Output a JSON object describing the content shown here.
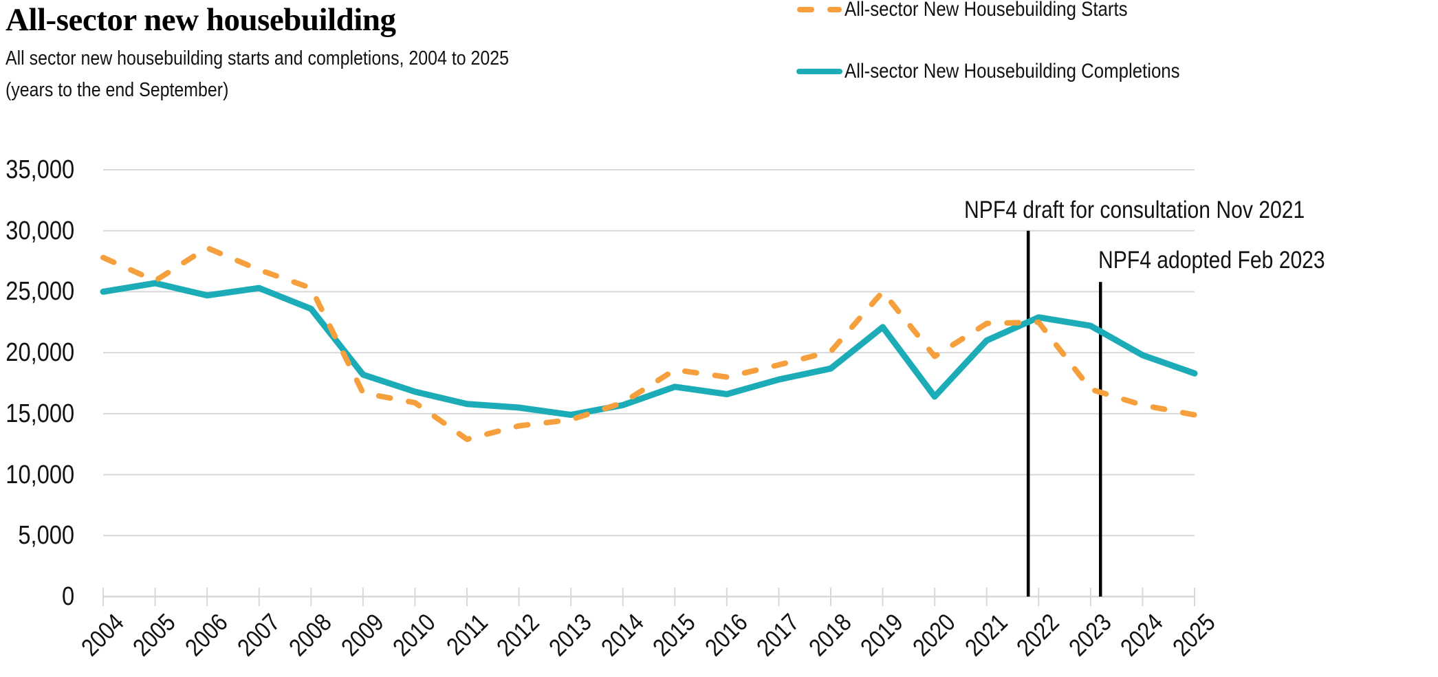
{
  "header": {
    "title": "All-sector new housebuilding",
    "subtitle_lines": [
      "All sector new housebuilding starts and completions, 2004 to 2025",
      "(years to the end September)"
    ]
  },
  "legend": {
    "items": [
      {
        "label": "All-sector New Housebuilding Starts",
        "color": "#F5A03C",
        "line_style": "dashed"
      },
      {
        "label": "All-sector New Housebuilding Completions",
        "color": "#1CACB8",
        "line_style": "solid"
      }
    ]
  },
  "chart_data": {
    "type": "line",
    "x": [
      2004,
      2005,
      2006,
      2007,
      2008,
      2009,
      2010,
      2011,
      2012,
      2013,
      2014,
      2015,
      2016,
      2017,
      2018,
      2019,
      2020,
      2021,
      2022,
      2023,
      2024,
      2025
    ],
    "series": [
      {
        "name": "All-sector New Housebuilding Starts",
        "color": "#F5A03C",
        "style": "dashed",
        "values": [
          27800,
          25900,
          28600,
          26800,
          25300,
          16700,
          15900,
          12900,
          14000,
          14500,
          15900,
          18600,
          18000,
          19000,
          20100,
          25000,
          19700,
          22400,
          22500,
          17000,
          15700,
          14900
        ]
      },
      {
        "name": "All-sector New Housebuilding Completions",
        "color": "#1CACB8",
        "style": "solid",
        "values": [
          25000,
          25700,
          24700,
          25300,
          23600,
          18200,
          16800,
          15800,
          15500,
          14900,
          15700,
          17200,
          16600,
          17800,
          18700,
          22100,
          16400,
          21000,
          22900,
          22200,
          19800,
          18300
        ]
      }
    ],
    "ylim": [
      0,
      35000
    ],
    "ytick_values": [
      0,
      5000,
      10000,
      15000,
      20000,
      25000,
      30000,
      35000
    ],
    "ytick_labels": [
      "0",
      "5,000",
      "10,000",
      "15,000",
      "20,000",
      "25,000",
      "30,000",
      "35,000"
    ],
    "grid": true,
    "legend_position": "top-right",
    "annotations": [
      {
        "label": "NPF4 draft for consultation Nov 2021",
        "x_year": 2021.8,
        "line_top_value": 30000
      },
      {
        "label": "NPF4 adopted Feb 2023",
        "x_year": 2023.19,
        "line_top_value": 25800
      }
    ]
  },
  "colors": {
    "grid": "#D8D8D8",
    "axis": "#D8D8D8",
    "text": "#121212",
    "annotation_line": "#000000",
    "background": "#FFFFFF"
  }
}
